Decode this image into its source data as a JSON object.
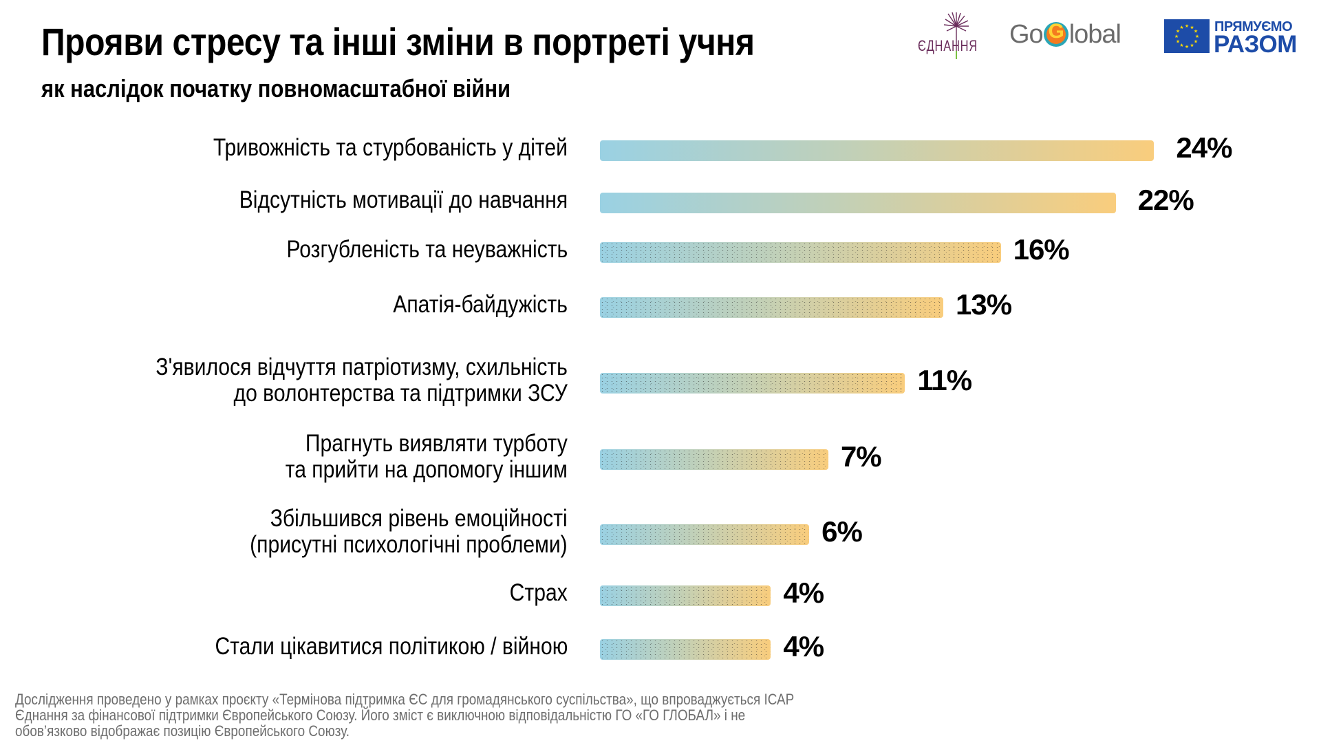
{
  "header": {
    "title": "Прояви стресу та інші зміни в портреті учня",
    "subtitle": "як наслідок початку повномасштабної війни"
  },
  "logos": {
    "ednannia": "ЄДНАННЯ",
    "goglobal_left": "Go",
    "goglobal_g": "G",
    "goglobal_right": "lobal",
    "eu_line1": "ПРЯМУЄМО",
    "eu_line2": "РАЗОМ"
  },
  "colors": {
    "bar_start": "#9ad1e3",
    "bar_mid": "#c1d0b8",
    "bar_end": "#f9cd7d",
    "eu_blue": "#1d4ca8",
    "eu_star": "#ffdd00"
  },
  "chart_data": {
    "type": "bar",
    "orientation": "horizontal",
    "title": "Прояви стресу та інші зміни в портреті учня",
    "subtitle": "як наслідок початку повномасштабної війни",
    "xlabel": "",
    "ylabel": "",
    "grid": false,
    "legend": "none",
    "unit": "%",
    "categories": [
      [
        "Тривожність та стурбованість у дітей"
      ],
      [
        "Відсутність мотивації до навчання"
      ],
      [
        "Розгубленість та неуважність"
      ],
      [
        "Апатія-байдужість"
      ],
      [
        "З'явилося відчуття патріотизму, схильність",
        "до волонтерства та підтримки ЗСУ"
      ],
      [
        "Прагнуть виявляти турботу",
        "та прийти на допомогу іншим"
      ],
      [
        "Збільшився рівень емоційності",
        "(присутні психологічні проблеми)"
      ],
      [
        "Страх"
      ],
      [
        "Стали цікавитися політикою / війною"
      ]
    ],
    "values": [
      24,
      22,
      16,
      13,
      11,
      7,
      6,
      4,
      4
    ],
    "value_labels": [
      "24%",
      "22%",
      "16%",
      "13%",
      "11%",
      "7%",
      "6%",
      "4%",
      "4%"
    ]
  },
  "footer": {
    "lines": [
      "Дослідження проведено у рамках проєкту «Термінова підтримка ЄС для громадянського суспільства», що впроваджується ІСАР",
      "Єднання за фінансової підтримки Європейського Союзу. Його зміст є виключною відповідальністю ГО «ГО ГЛОБАЛ» і не",
      "обов’язково відображає позицію Європейського Союзу."
    ]
  }
}
